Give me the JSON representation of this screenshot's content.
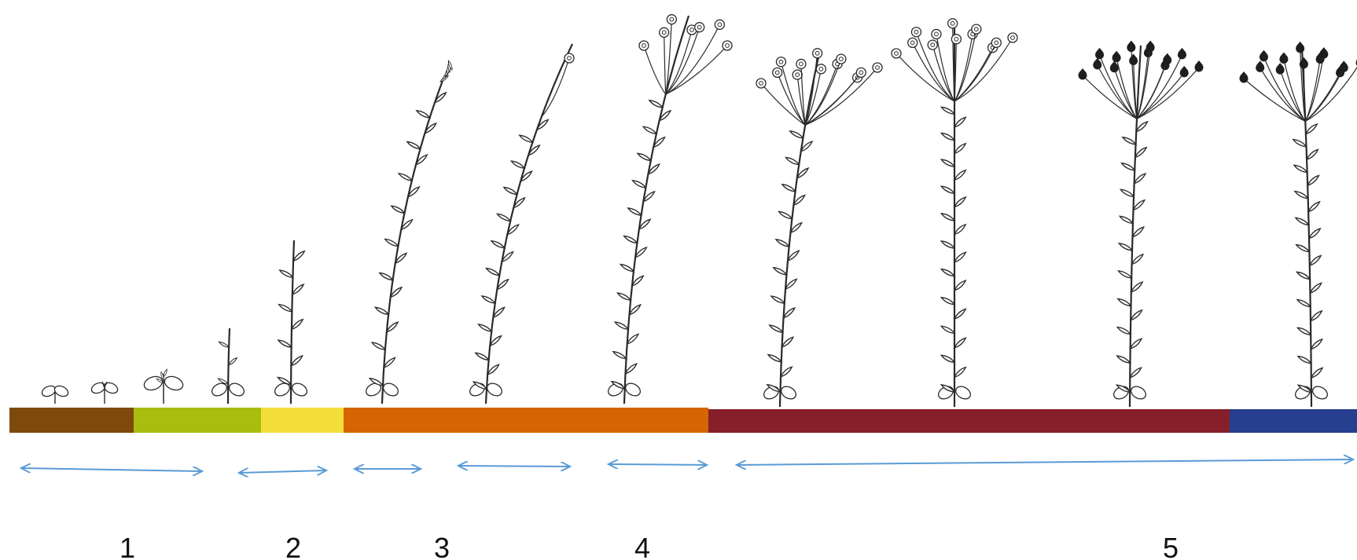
{
  "diagram": {
    "colors": {
      "segment_1": "#7d4a0b",
      "segment_2": "#a9bd0e",
      "segment_3": "#f4de3c",
      "segment_4": "#d46500",
      "segment_5": "#861f2a",
      "segment_6": "#263f8e",
      "arrow": "#5b9bd5",
      "ink": "#2a2a2a"
    },
    "stage_labels": [
      "1",
      "2",
      "3",
      "4",
      "5"
    ],
    "plant_icons": [
      "seedling-cotyledons",
      "seedling-first-leaves",
      "seedling-leaf-pairs",
      "young-shoot",
      "vegetative-stem",
      "tall-vegetative-stem",
      "budding-stem",
      "flowering-stem",
      "flowering-plant",
      "flowering-plant",
      "seed-capsule-plant",
      "mature-capsule-plant"
    ]
  }
}
